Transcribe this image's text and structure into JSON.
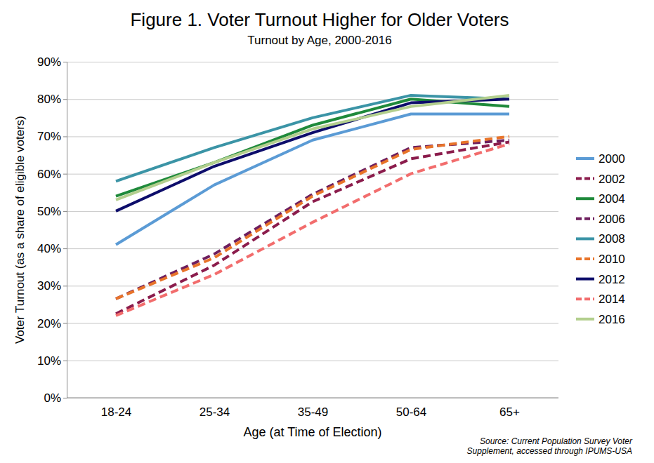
{
  "chart_data": {
    "type": "line",
    "title": "Figure 1. Voter Turnout Higher for Older Voters",
    "subtitle": "Turnout by Age, 2000-2016",
    "x_label": "Age (at Time of Election)",
    "y_label": "Voter Turnout (as a share of eligible voters)",
    "note": [
      "Source: Current Population Survey Voter",
      "Supplement, accessed through IPUMS-USA"
    ],
    "categories": [
      "18-24",
      "25-34",
      "35-49",
      "50-64",
      "65+"
    ],
    "ylim": [
      0,
      90
    ],
    "yticks": [
      {
        "value": 0,
        "label": "0%"
      },
      {
        "value": 10,
        "label": "10%"
      },
      {
        "value": 20,
        "label": "20%"
      },
      {
        "value": 30,
        "label": "30%"
      },
      {
        "value": 40,
        "label": "40%"
      },
      {
        "value": 50,
        "label": "50%"
      },
      {
        "value": 60,
        "label": "60%"
      },
      {
        "value": 70,
        "label": "70%"
      },
      {
        "value": 80,
        "label": "80%"
      },
      {
        "value": 90,
        "label": "90%"
      }
    ],
    "grid": true,
    "legend": "right",
    "series": [
      {
        "name": "2000",
        "color": "#5b9bd5",
        "line_style": "solid",
        "values": [
          41,
          57,
          69,
          76,
          76
        ]
      },
      {
        "name": "2002",
        "color": "#8b1c4c",
        "line_style": "dashed",
        "values": [
          22.5,
          35.5,
          52.5,
          64,
          68.5
        ]
      },
      {
        "name": "2004",
        "color": "#1f8a3b",
        "line_style": "solid",
        "values": [
          54,
          63,
          73,
          80,
          78
        ]
      },
      {
        "name": "2006",
        "color": "#6e1f5e",
        "line_style": "dashed",
        "values": [
          26.5,
          38.5,
          54.5,
          67,
          69
        ]
      },
      {
        "name": "2008",
        "color": "#3b94a6",
        "line_style": "solid",
        "values": [
          58,
          67,
          75,
          81,
          80
        ]
      },
      {
        "name": "2010",
        "color": "#e8742a",
        "line_style": "dashed",
        "values": [
          26.5,
          37.5,
          54,
          66.5,
          70
        ]
      },
      {
        "name": "2012",
        "color": "#0d0d6b",
        "line_style": "solid",
        "values": [
          50,
          62,
          71,
          79,
          80
        ]
      },
      {
        "name": "2014",
        "color": "#f26d6d",
        "line_style": "dashed",
        "values": [
          22,
          33,
          47,
          60,
          68
        ]
      },
      {
        "name": "2016",
        "color": "#b3cf8e",
        "line_style": "solid",
        "values": [
          53,
          63,
          72,
          78,
          81
        ]
      }
    ]
  }
}
